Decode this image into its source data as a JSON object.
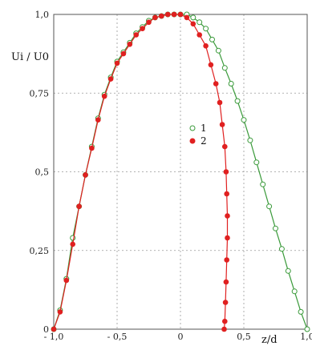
{
  "chart_data": {
    "type": "line",
    "xlabel": "z/d",
    "ylabel": "Ui / U0",
    "xlim": [
      -1.0,
      1.0
    ],
    "ylim": [
      0,
      1.0
    ],
    "xticks": [
      {
        "v": -1.0,
        "label": "- 1,0"
      },
      {
        "v": -0.5,
        "label": "- 0,5"
      },
      {
        "v": 0,
        "label": "0"
      },
      {
        "v": 0.5,
        "label": "0,5"
      },
      {
        "v": 1.0,
        "label": "1,0"
      }
    ],
    "yticks": [
      {
        "v": 0,
        "label": "0"
      },
      {
        "v": 0.25,
        "label": "0,25"
      },
      {
        "v": 0.5,
        "label": "0,5"
      },
      {
        "v": 0.75,
        "label": "0,75"
      },
      {
        "v": 1.0,
        "label": "1,0"
      }
    ],
    "grid": true,
    "legend_position": "center-right",
    "series": [
      {
        "name": "1",
        "marker": "open-circle",
        "color": "#3a9a3a",
        "points": [
          [
            -1.0,
            0.0
          ],
          [
            -0.95,
            0.06
          ],
          [
            -0.9,
            0.16
          ],
          [
            -0.85,
            0.29
          ],
          [
            -0.8,
            0.39
          ],
          [
            -0.75,
            0.49
          ],
          [
            -0.7,
            0.58
          ],
          [
            -0.65,
            0.67
          ],
          [
            -0.6,
            0.745
          ],
          [
            -0.55,
            0.8
          ],
          [
            -0.5,
            0.85
          ],
          [
            -0.45,
            0.88
          ],
          [
            -0.4,
            0.91
          ],
          [
            -0.35,
            0.94
          ],
          [
            -0.3,
            0.96
          ],
          [
            -0.25,
            0.98
          ],
          [
            -0.2,
            0.99
          ],
          [
            -0.15,
            0.995
          ],
          [
            -0.1,
            1.0
          ],
          [
            -0.05,
            1.0
          ],
          [
            0.0,
            1.0
          ],
          [
            0.05,
            1.0
          ],
          [
            0.1,
            0.99
          ],
          [
            0.15,
            0.975
          ],
          [
            0.2,
            0.955
          ],
          [
            0.25,
            0.92
          ],
          [
            0.3,
            0.885
          ],
          [
            0.35,
            0.83
          ],
          [
            0.4,
            0.78
          ],
          [
            0.45,
            0.725
          ],
          [
            0.5,
            0.665
          ],
          [
            0.55,
            0.6
          ],
          [
            0.6,
            0.53
          ],
          [
            0.65,
            0.46
          ],
          [
            0.7,
            0.39
          ],
          [
            0.75,
            0.32
          ],
          [
            0.8,
            0.255
          ],
          [
            0.85,
            0.185
          ],
          [
            0.9,
            0.12
          ],
          [
            0.95,
            0.055
          ],
          [
            1.0,
            0.0
          ]
        ]
      },
      {
        "name": "2",
        "marker": "filled-circle",
        "color": "#e02020",
        "points": [
          [
            -1.0,
            0.0
          ],
          [
            -0.95,
            0.055
          ],
          [
            -0.9,
            0.155
          ],
          [
            -0.85,
            0.27
          ],
          [
            -0.8,
            0.39
          ],
          [
            -0.75,
            0.49
          ],
          [
            -0.7,
            0.575
          ],
          [
            -0.65,
            0.665
          ],
          [
            -0.6,
            0.74
          ],
          [
            -0.55,
            0.795
          ],
          [
            -0.5,
            0.845
          ],
          [
            -0.45,
            0.875
          ],
          [
            -0.4,
            0.905
          ],
          [
            -0.35,
            0.935
          ],
          [
            -0.3,
            0.955
          ],
          [
            -0.25,
            0.975
          ],
          [
            -0.2,
            0.99
          ],
          [
            -0.15,
            0.995
          ],
          [
            -0.1,
            1.0
          ],
          [
            -0.05,
            1.0
          ],
          [
            0.0,
            1.0
          ],
          [
            0.05,
            0.99
          ],
          [
            0.1,
            0.97
          ],
          [
            0.15,
            0.935
          ],
          [
            0.2,
            0.9
          ],
          [
            0.24,
            0.84
          ],
          [
            0.28,
            0.78
          ],
          [
            0.31,
            0.72
          ],
          [
            0.33,
            0.65
          ],
          [
            0.35,
            0.58
          ],
          [
            0.36,
            0.5
          ],
          [
            0.365,
            0.43
          ],
          [
            0.37,
            0.36
          ],
          [
            0.37,
            0.29
          ],
          [
            0.365,
            0.22
          ],
          [
            0.36,
            0.15
          ],
          [
            0.355,
            0.085
          ],
          [
            0.35,
            0.025
          ],
          [
            0.345,
            0.0
          ]
        ]
      }
    ]
  }
}
